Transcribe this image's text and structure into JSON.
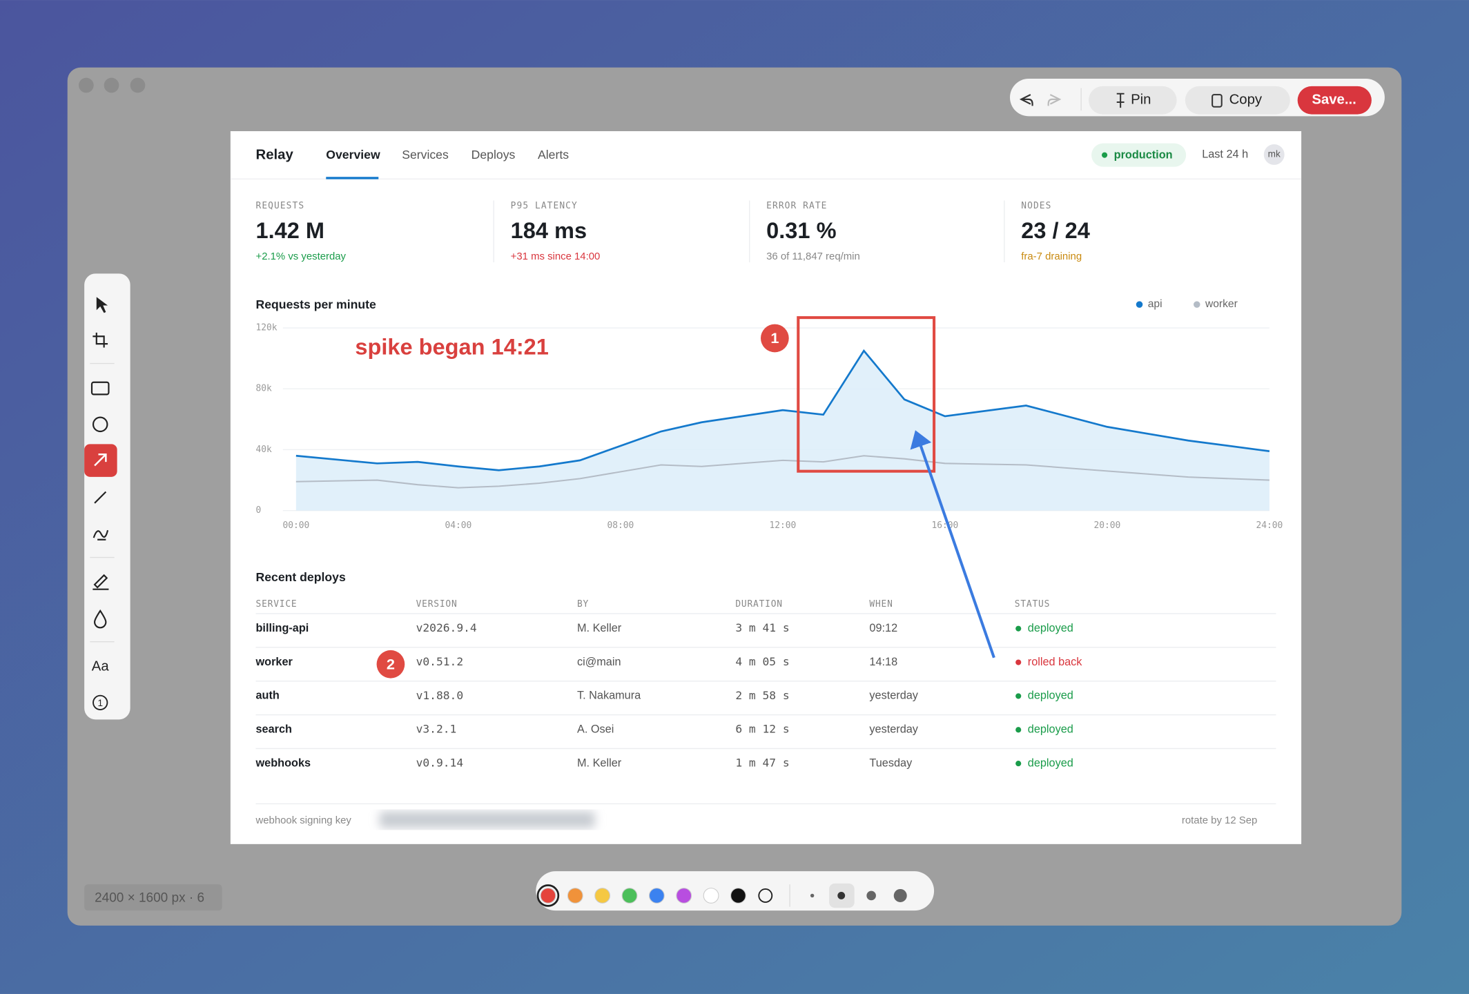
{
  "toolbar": {
    "pin": "Pin",
    "copy": "Copy",
    "save": "Save..."
  },
  "tools": {
    "text": "Aa",
    "counter": "1"
  },
  "status_bar": "2400 × 1600 px · 6",
  "palette": [
    "#e5443c",
    "#f0923a",
    "#f5c842",
    "#4cbf5a",
    "#3b82f0",
    "#b84ee0",
    "#ffffff",
    "#111111"
  ],
  "app": {
    "brand": "Relay",
    "nav": [
      "Overview",
      "Services",
      "Deploys",
      "Alerts"
    ],
    "environment": "production",
    "range": "Last 24 h",
    "user": "mk"
  },
  "stats": [
    {
      "label": "REQUESTS",
      "value": "1.42 M",
      "note": "+2.1% vs yesterday",
      "note_color": "#1a9c4a"
    },
    {
      "label": "P95 LATENCY",
      "value": "184 ms",
      "note": "+31 ms since 14:00",
      "note_color": "#d9363e"
    },
    {
      "label": "ERROR RATE",
      "value": "0.31 %",
      "note": "36 of 11,847 req/min",
      "note_color": "#888888"
    },
    {
      "label": "NODES",
      "value": "23 / 24",
      "note": "fra-7 draining",
      "note_color": "#c98a10"
    }
  ],
  "chart_data": {
    "type": "line",
    "title": "Requests per minute",
    "x": [
      0,
      2,
      3,
      4,
      5,
      6,
      7,
      9,
      10,
      12,
      13,
      14,
      15,
      16,
      18,
      20,
      22,
      24
    ],
    "series": [
      {
        "name": "api",
        "color": "#1479cc",
        "fill": "#dcedf9",
        "values": [
          36000,
          31000,
          32000,
          29000,
          26500,
          29000,
          33000,
          52000,
          58000,
          66000,
          63000,
          105000,
          73000,
          62000,
          69000,
          55000,
          46000,
          39000
        ]
      },
      {
        "name": "worker",
        "color": "#b4bcc6",
        "values": [
          19000,
          20000,
          17000,
          15000,
          16000,
          18000,
          21000,
          30000,
          29000,
          33000,
          32000,
          36000,
          34000,
          31000,
          30000,
          26000,
          22000,
          20000
        ]
      }
    ],
    "xlim": [
      0,
      24
    ],
    "xticks": [
      {
        "value": 0,
        "label": "00:00"
      },
      {
        "value": 4,
        "label": "04:00"
      },
      {
        "value": 8,
        "label": "08:00"
      },
      {
        "value": 12,
        "label": "12:00"
      },
      {
        "value": 16,
        "label": "16:00"
      },
      {
        "value": 20,
        "label": "20:00"
      },
      {
        "value": 24,
        "label": "24:00"
      }
    ],
    "ylim": [
      0,
      120000
    ],
    "yticks": [
      0,
      {
        "value": 40000,
        "label": "40k"
      },
      {
        "value": 80000,
        "label": "80k"
      },
      {
        "value": 120000,
        "label": "120k"
      }
    ],
    "grid": true,
    "legend": "top-right"
  },
  "annotations": {
    "note": "spike began 14:21",
    "badge_1": "1",
    "badge_2": "2"
  },
  "deploys": {
    "title": "Recent deploys",
    "columns": [
      "SERVICE",
      "VERSION",
      "BY",
      "DURATION",
      "WHEN",
      "STATUS"
    ],
    "rows": [
      [
        "billing-api",
        "v2026.9.4",
        "M. Keller",
        "3 m 41 s",
        "09:12",
        "deployed"
      ],
      [
        "worker",
        "v0.51.2",
        "ci@main",
        "4 m 05 s",
        "14:18",
        "rolled back"
      ],
      [
        "auth",
        "v1.88.0",
        "T. Nakamura",
        "2 m 58 s",
        "yesterday",
        "deployed"
      ],
      [
        "search",
        "v3.2.1",
        "A. Osei",
        "6 m 12 s",
        "yesterday",
        "deployed"
      ],
      [
        "webhooks",
        "v0.9.14",
        "M. Keller",
        "1 m 47 s",
        "Tuesday",
        "deployed"
      ]
    ],
    "status_colors": [
      "#1a9c4a",
      "#d9363e",
      "#1a9c4a",
      "#1a9c4a",
      "#1a9c4a"
    ]
  },
  "footer": {
    "left": "webhook signing key",
    "right": "rotate by 12 Sep"
  }
}
